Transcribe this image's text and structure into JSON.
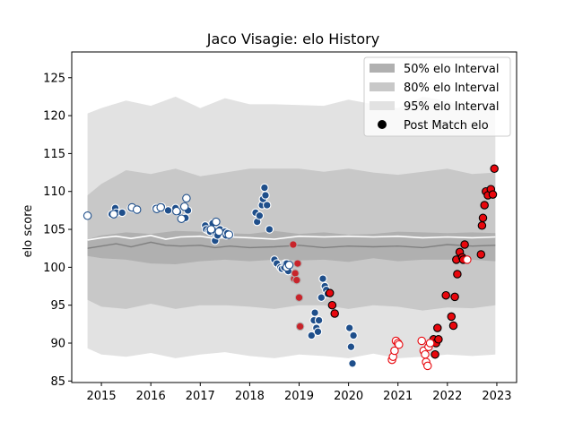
{
  "chart_data": {
    "type": "scatter",
    "title": "Jaco Visagie: elo History",
    "xlabel": "",
    "ylabel": "elo score",
    "xlim": [
      2014.4,
      2023.4
    ],
    "ylim": [
      84.8,
      128.4
    ],
    "xticks": [
      2015,
      2016,
      2017,
      2018,
      2019,
      2020,
      2021,
      2022,
      2023
    ],
    "yticks": [
      85,
      90,
      95,
      100,
      105,
      110,
      115,
      120,
      125
    ],
    "xtick_labels": [
      "2015",
      "2016",
      "2017",
      "2018",
      "2019",
      "2020",
      "2021",
      "2022",
      "2023"
    ],
    "ytick_labels": [
      "85",
      "90",
      "95",
      "100",
      "105",
      "110",
      "115",
      "120",
      "125"
    ],
    "grid": false,
    "legend_position": "top-right",
    "legend": [
      {
        "label": "50% elo Interval",
        "color": "#b0b0b0",
        "kind": "patch"
      },
      {
        "label": "80% elo Interval",
        "color": "#c8c8c8",
        "kind": "patch"
      },
      {
        "label": "95% elo Interval",
        "color": "#e2e2e2",
        "kind": "patch"
      },
      {
        "label": "Post Match elo",
        "color": "#000000",
        "kind": "marker"
      }
    ],
    "bands": [
      {
        "name": "95% elo Interval",
        "color": "#e2e2e2",
        "x": [
          2014.72,
          2015.0,
          2015.5,
          2016.0,
          2016.5,
          2017.0,
          2017.5,
          2018.0,
          2018.5,
          2019.0,
          2019.5,
          2020.0,
          2020.5,
          2021.0,
          2021.5,
          2022.0,
          2022.5,
          2022.97
        ],
        "upper": [
          120.3,
          121.0,
          122.0,
          121.3,
          122.5,
          121.0,
          122.3,
          121.5,
          121.5,
          121.4,
          121.3,
          122.1,
          121.5,
          121.0,
          122.5,
          121.9,
          120.9,
          121.2
        ],
        "lower": [
          89.3,
          88.5,
          88.2,
          88.7,
          88.0,
          88.5,
          88.8,
          88.3,
          88.0,
          88.5,
          88.3,
          88.0,
          88.6,
          88.0,
          88.2,
          88.5,
          88.3,
          88.5
        ]
      },
      {
        "name": "80% elo Interval",
        "color": "#c8c8c8",
        "x": [
          2014.72,
          2015.0,
          2015.5,
          2016.0,
          2016.5,
          2017.0,
          2017.5,
          2018.0,
          2018.5,
          2019.0,
          2019.5,
          2020.0,
          2020.5,
          2021.0,
          2021.5,
          2022.0,
          2022.5,
          2022.97
        ],
        "upper": [
          109.5,
          111.0,
          112.8,
          112.3,
          113.0,
          112.0,
          112.5,
          113.0,
          113.0,
          113.0,
          112.6,
          113.0,
          112.5,
          112.2,
          112.6,
          113.0,
          112.3,
          112.5
        ],
        "lower": [
          95.7,
          94.8,
          94.5,
          95.2,
          94.5,
          95.0,
          95.0,
          94.8,
          94.5,
          95.0,
          95.0,
          94.5,
          95.0,
          94.8,
          94.3,
          94.7,
          94.6,
          95.0
        ]
      },
      {
        "name": "50% elo Interval",
        "color": "#b0b0b0",
        "x": [
          2014.72,
          2015.0,
          2015.5,
          2016.0,
          2016.5,
          2017.0,
          2017.5,
          2018.0,
          2018.5,
          2019.0,
          2019.5,
          2020.0,
          2020.5,
          2021.0,
          2021.5,
          2022.0,
          2022.5,
          2022.97
        ],
        "upper": [
          103.7,
          104.2,
          104.6,
          104.4,
          104.8,
          104.7,
          104.5,
          104.4,
          104.8,
          104.4,
          104.6,
          104.3,
          104.4,
          104.7,
          104.6,
          104.5,
          104.6,
          104.5
        ],
        "lower": [
          101.5,
          101.2,
          101.0,
          100.5,
          100.4,
          100.8,
          101.0,
          100.8,
          101.0,
          100.9,
          101.0,
          100.7,
          101.2,
          100.8,
          101.0,
          101.0,
          101.0,
          100.8
        ]
      }
    ],
    "lines": [
      {
        "name": "mean",
        "color": "#ffffff",
        "width": 1.6,
        "x": [
          2014.72,
          2015.0,
          2015.3,
          2015.6,
          2016.0,
          2016.3,
          2016.6,
          2017.0,
          2017.3,
          2017.6,
          2018.0,
          2018.5,
          2019.0,
          2019.5,
          2020.0,
          2020.5,
          2021.0,
          2021.5,
          2022.0,
          2022.5,
          2022.97
        ],
        "y": [
          103.6,
          103.9,
          104.1,
          103.8,
          104.2,
          103.7,
          104.0,
          104.1,
          103.8,
          104.0,
          103.9,
          103.7,
          104.1,
          104.0,
          104.1,
          104.0,
          104.1,
          103.9,
          104.0,
          103.9,
          104.0
        ]
      },
      {
        "name": "median",
        "color": "#808080",
        "width": 1.4,
        "x": [
          2014.72,
          2015.0,
          2015.3,
          2015.6,
          2016.0,
          2016.3,
          2016.6,
          2017.0,
          2017.3,
          2017.6,
          2018.0,
          2018.5,
          2019.0,
          2019.5,
          2020.0,
          2020.5,
          2021.0,
          2021.5,
          2022.0,
          2022.5,
          2022.97
        ],
        "y": [
          102.5,
          102.8,
          103.1,
          102.7,
          103.3,
          102.9,
          102.8,
          102.9,
          102.6,
          102.8,
          102.6,
          102.7,
          102.9,
          102.6,
          102.8,
          102.7,
          102.8,
          102.6,
          103.0,
          102.8,
          102.9
        ]
      }
    ],
    "series": [
      {
        "name": "blue",
        "fill": "#1f4f8b",
        "edge": "#ffffff",
        "x": [
          2015.21,
          2015.28,
          2015.3,
          2015.42,
          2015.6,
          2015.7,
          2016.1,
          2016.17,
          2016.22,
          2016.35,
          2016.5,
          2016.55,
          2016.7,
          2016.75,
          2017.1,
          2017.12,
          2017.17,
          2017.2,
          2017.25,
          2017.28,
          2017.3,
          2017.32,
          2017.35,
          2017.4,
          2017.5,
          2017.52,
          2017.55,
          2017.6,
          2018.12,
          2018.15,
          2018.2,
          2018.25,
          2018.27,
          2018.3,
          2018.32,
          2018.35,
          2018.4,
          2018.5,
          2018.55,
          2018.62,
          2018.65,
          2018.7,
          2018.72,
          2018.75,
          2018.78,
          2019.25,
          2019.3,
          2019.32,
          2019.35,
          2019.38,
          2019.4,
          2019.45,
          2019.48,
          2019.52,
          2019.55,
          2019.58,
          2020.02,
          2020.05,
          2020.08,
          2020.1
        ],
        "y": [
          107.0,
          107.8,
          107.2,
          107.2,
          107.8,
          107.6,
          107.8,
          107.8,
          108.0,
          107.5,
          107.8,
          107.3,
          106.5,
          107.5,
          105.5,
          105.0,
          104.8,
          104.7,
          105.8,
          104.8,
          103.5,
          104.3,
          104.2,
          105.0,
          104.7,
          104.2,
          104.5,
          104.3,
          107.2,
          106.0,
          106.8,
          108.2,
          109.0,
          110.5,
          109.5,
          108.2,
          105.0,
          101.0,
          100.5,
          100.0,
          99.8,
          100.0,
          100.5,
          100.5,
          99.5,
          91.0,
          93.0,
          94.0,
          92.0,
          91.5,
          93.0,
          96.0,
          98.5,
          97.5,
          97.0,
          96.5,
          92.0,
          89.5,
          87.3,
          91.0
        ]
      },
      {
        "name": "white",
        "fill": "#ffffff",
        "edge": "#1f4f8b",
        "x": [
          2014.72,
          2015.25,
          2015.62,
          2015.72,
          2016.12,
          2016.2,
          2016.52,
          2016.62,
          2016.68,
          2016.72,
          2017.22,
          2017.32,
          2017.38,
          2017.58,
          2018.75,
          2018.8
        ],
        "y": [
          106.8,
          107.0,
          107.9,
          107.6,
          107.7,
          107.9,
          107.4,
          106.4,
          108.0,
          109.1,
          105.0,
          106.0,
          104.7,
          104.3,
          100.0,
          100.3
        ]
      },
      {
        "name": "red",
        "fill": "#e8070d",
        "edge": "#000000",
        "x": [
          2019.62,
          2019.67,
          2019.72,
          2021.72,
          2021.75,
          2021.77,
          2021.8,
          2021.82,
          2021.97,
          2022.08,
          2022.12,
          2022.15,
          2022.18,
          2022.2,
          2022.25,
          2022.3,
          2022.32,
          2022.35,
          2022.68,
          2022.7,
          2022.72,
          2022.75,
          2022.78,
          2022.82,
          2022.88,
          2022.92,
          2022.95
        ],
        "y": [
          96.6,
          95.0,
          93.9,
          90.5,
          88.5,
          90.0,
          92.0,
          90.5,
          96.3,
          93.5,
          92.3,
          96.1,
          101.0,
          99.1,
          102.0,
          101.3,
          101.0,
          103.0,
          101.7,
          105.5,
          106.5,
          108.2,
          110.0,
          109.5,
          110.3,
          109.6,
          113.0
        ]
      },
      {
        "name": "red-muted",
        "fill": "#c8242b",
        "edge": "#b0b0b0",
        "x": [
          2018.88,
          2018.9,
          2018.92,
          2018.95,
          2018.97,
          2019.0,
          2019.02
        ],
        "y": [
          103.0,
          98.5,
          99.2,
          98.3,
          100.5,
          96.0,
          92.2
        ]
      },
      {
        "name": "red-hollow",
        "fill": "#ffffff",
        "edge": "#e8070d",
        "x": [
          2020.88,
          2020.9,
          2020.93,
          2020.96,
          2021.0,
          2021.02,
          2021.48,
          2021.52,
          2021.55,
          2021.57,
          2021.6,
          2021.62,
          2021.65,
          2022.4
        ],
        "y": [
          87.8,
          88.2,
          89.0,
          90.3,
          90.0,
          89.8,
          90.3,
          89.0,
          88.5,
          87.5,
          87.0,
          89.5,
          90.0,
          101.0
        ]
      }
    ]
  }
}
